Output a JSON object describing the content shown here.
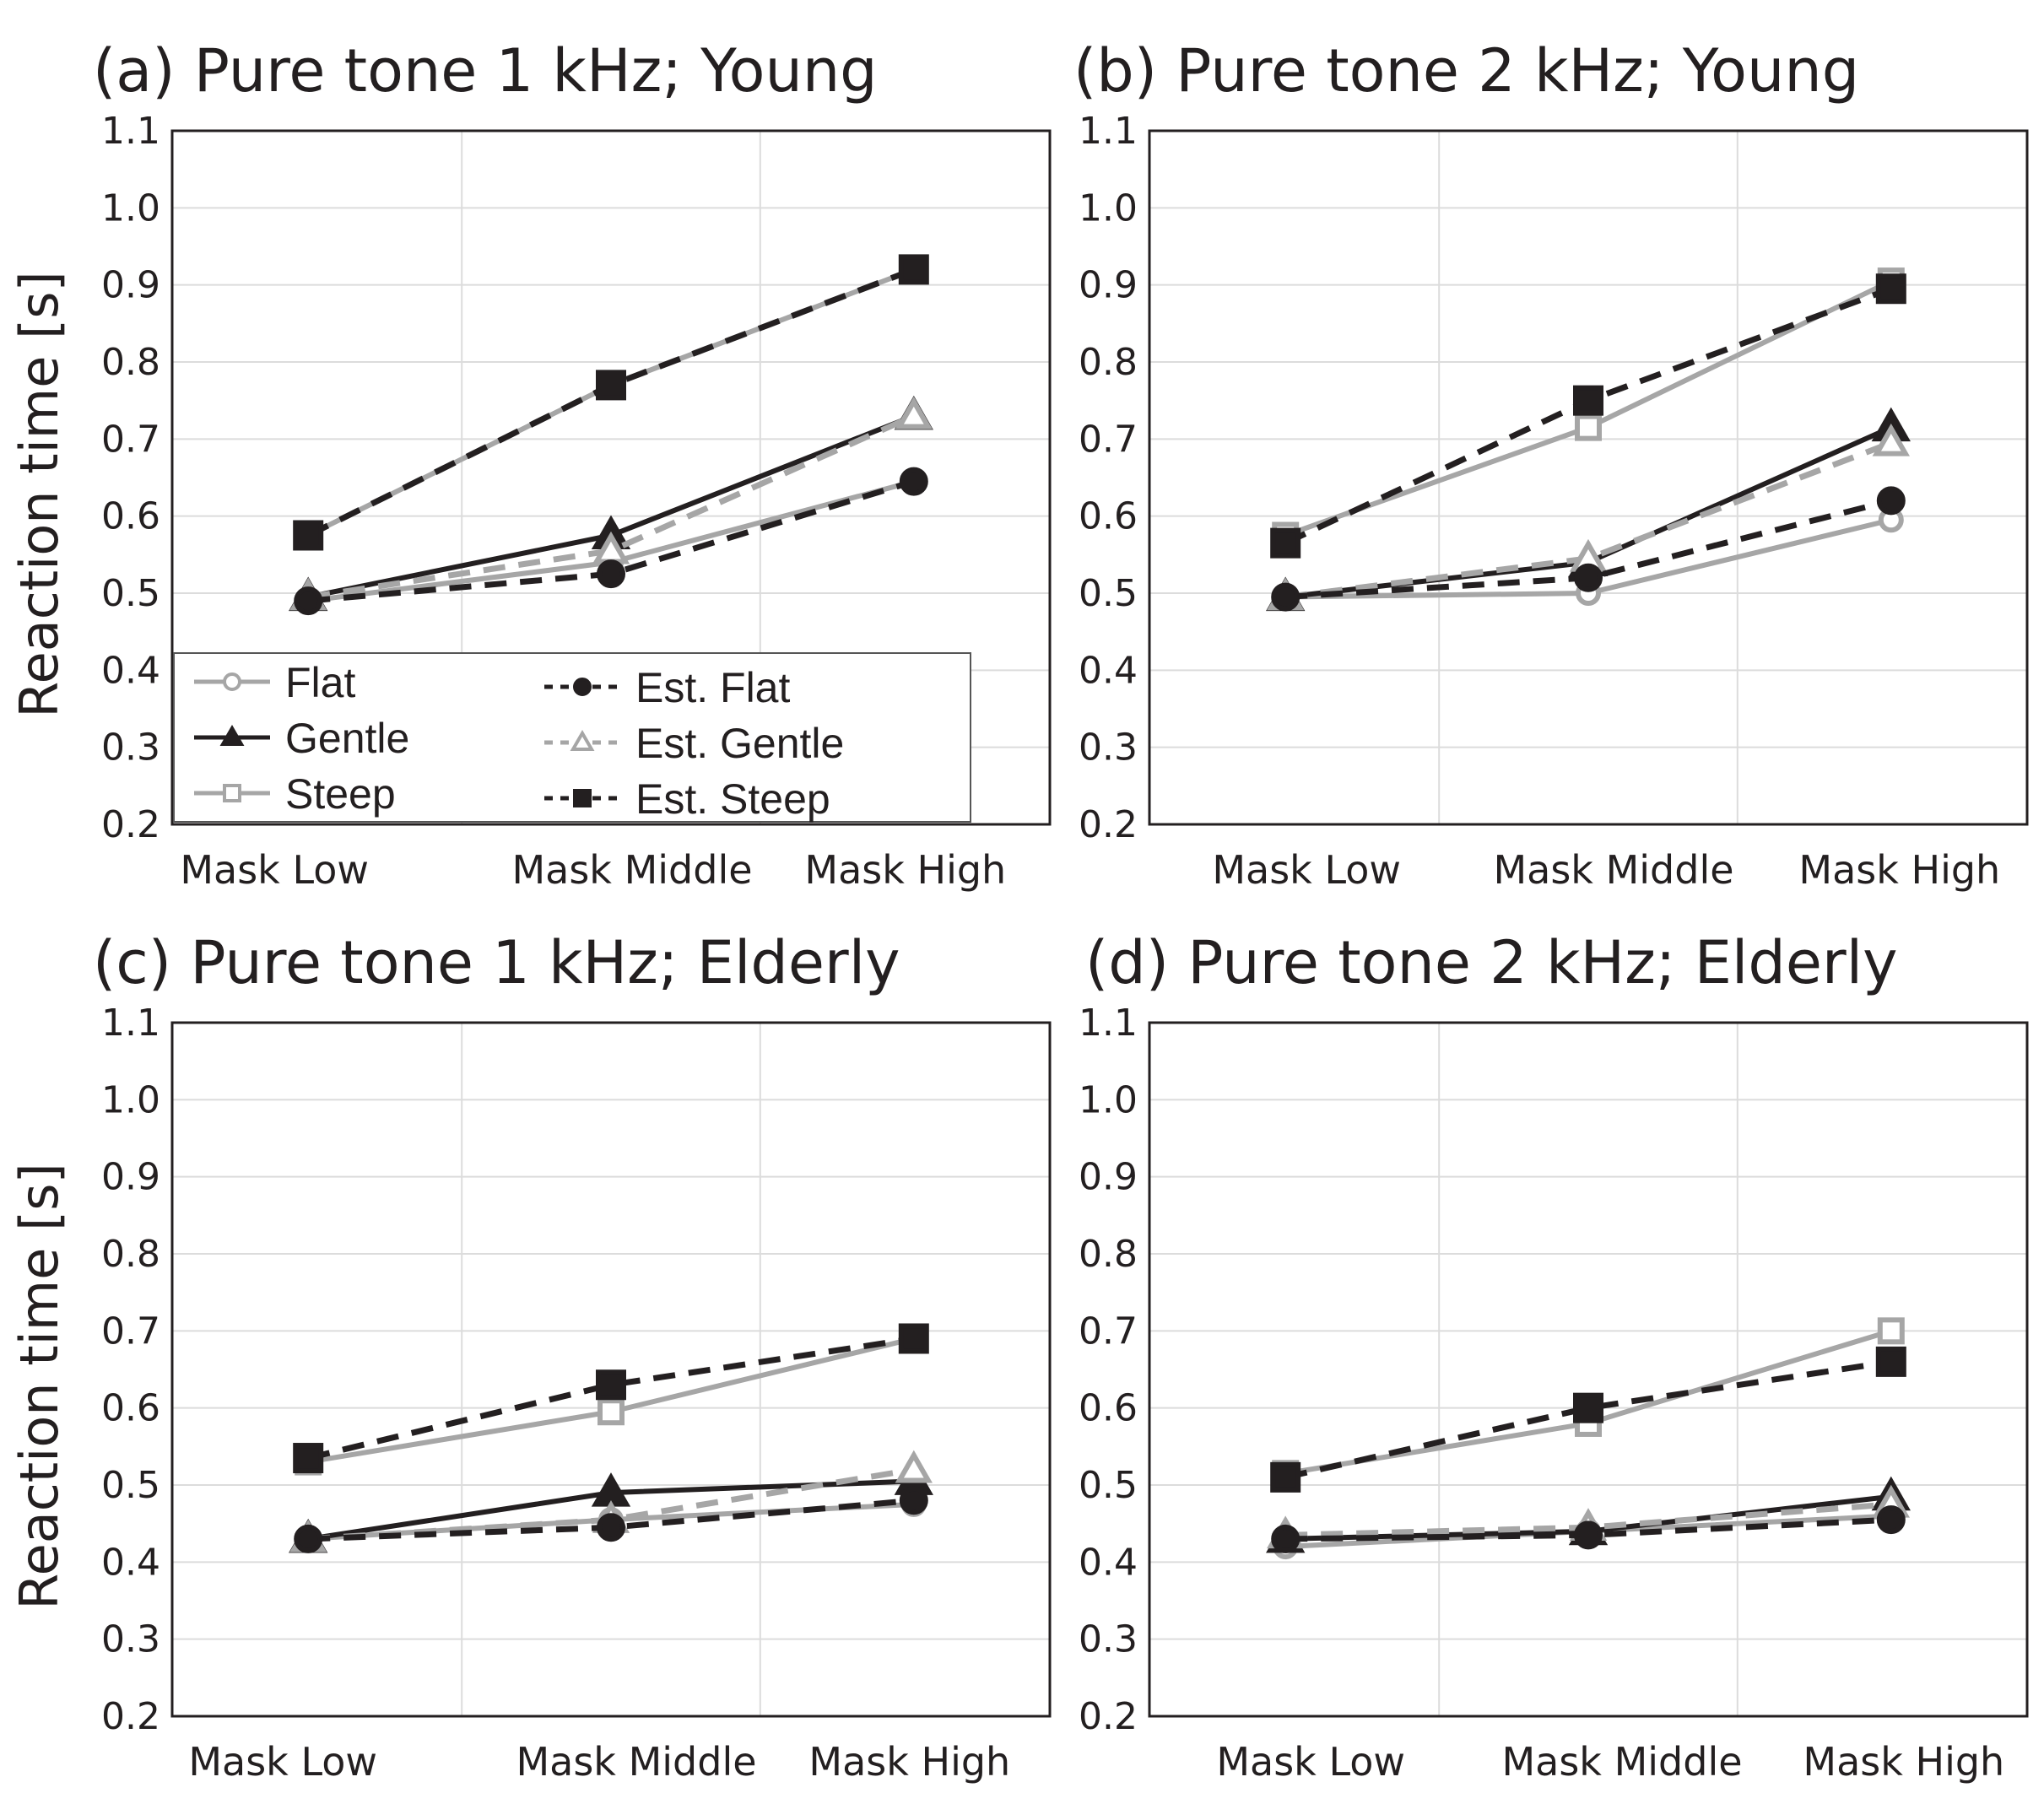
{
  "chart_data": [
    {
      "type": "line",
      "title": "(a) Pure tone 1 kHz; Young",
      "xlabel": "",
      "ylabel": "Reaction time [s]",
      "categories": [
        "Mask Low",
        "Mask Middle",
        "Mask High"
      ],
      "ylim": [
        0.2,
        1.1
      ],
      "yticks": [
        "0.2",
        "0.3",
        "0.4",
        "0.5",
        "0.6",
        "0.7",
        "0.8",
        "0.9",
        "1.0",
        "1.1"
      ],
      "grid": true,
      "legend": "lower-left",
      "series": [
        {
          "name": "Flat",
          "values": [
            0.49,
            0.54,
            0.645
          ]
        },
        {
          "name": "Gentle",
          "values": [
            0.495,
            0.575,
            0.73
          ]
        },
        {
          "name": "Steep",
          "values": [
            0.575,
            0.77,
            0.92
          ]
        },
        {
          "name": "Est. Flat",
          "values": [
            0.49,
            0.525,
            0.645
          ]
        },
        {
          "name": "Est. Gentle",
          "values": [
            0.495,
            0.555,
            0.73
          ]
        },
        {
          "name": "Est. Steep",
          "values": [
            0.575,
            0.77,
            0.92
          ]
        }
      ]
    },
    {
      "type": "line",
      "title": "(b) Pure tone 2 kHz; Young",
      "xlabel": "",
      "ylabel": "",
      "categories": [
        "Mask Low",
        "Mask Middle",
        "Mask High"
      ],
      "ylim": [
        0.2,
        1.1
      ],
      "yticks": [
        "0.2",
        "0.3",
        "0.4",
        "0.5",
        "0.6",
        "0.7",
        "0.8",
        "0.9",
        "1.0",
        "1.1"
      ],
      "grid": true,
      "series": [
        {
          "name": "Flat",
          "values": [
            0.495,
            0.5,
            0.595
          ]
        },
        {
          "name": "Gentle",
          "values": [
            0.495,
            0.54,
            0.715
          ]
        },
        {
          "name": "Steep",
          "values": [
            0.575,
            0.715,
            0.905
          ]
        },
        {
          "name": "Est. Flat",
          "values": [
            0.495,
            0.52,
            0.62
          ]
        },
        {
          "name": "Est. Gentle",
          "values": [
            0.495,
            0.545,
            0.695
          ]
        },
        {
          "name": "Est. Steep",
          "values": [
            0.565,
            0.75,
            0.895
          ]
        }
      ]
    },
    {
      "type": "line",
      "title": "(c) Pure tone 1 kHz; Elderly",
      "xlabel": "",
      "ylabel": "Reaction time [s]",
      "categories": [
        "Mask Low",
        "Mask Middle",
        "Mask High"
      ],
      "ylim": [
        0.2,
        1.1
      ],
      "yticks": [
        "0.2",
        "0.3",
        "0.4",
        "0.5",
        "0.6",
        "0.7",
        "0.8",
        "0.9",
        "1.0",
        "1.1"
      ],
      "grid": true,
      "series": [
        {
          "name": "Flat",
          "values": [
            0.43,
            0.455,
            0.475
          ]
        },
        {
          "name": "Gentle",
          "values": [
            0.43,
            0.49,
            0.505
          ]
        },
        {
          "name": "Steep",
          "values": [
            0.53,
            0.595,
            0.69
          ]
        },
        {
          "name": "Est. Flat",
          "values": [
            0.43,
            0.445,
            0.48
          ]
        },
        {
          "name": "Est. Gentle",
          "values": [
            0.43,
            0.455,
            0.52
          ]
        },
        {
          "name": "Est. Steep",
          "values": [
            0.535,
            0.63,
            0.69
          ]
        }
      ]
    },
    {
      "type": "line",
      "title": "(d) Pure tone 2 kHz; Elderly",
      "xlabel": "",
      "ylabel": "",
      "categories": [
        "Mask Low",
        "Mask Middle",
        "Mask High"
      ],
      "ylim": [
        0.2,
        1.1
      ],
      "yticks": [
        "0.2",
        "0.3",
        "0.4",
        "0.5",
        "0.6",
        "0.7",
        "0.8",
        "0.9",
        "1.0",
        "1.1"
      ],
      "grid": true,
      "series": [
        {
          "name": "Flat",
          "values": [
            0.42,
            0.44,
            0.46
          ]
        },
        {
          "name": "Gentle",
          "values": [
            0.43,
            0.44,
            0.485
          ]
        },
        {
          "name": "Steep",
          "values": [
            0.515,
            0.58,
            0.7
          ]
        },
        {
          "name": "Est. Flat",
          "values": [
            0.43,
            0.435,
            0.455
          ]
        },
        {
          "name": "Est. Gentle",
          "values": [
            0.435,
            0.445,
            0.475
          ]
        },
        {
          "name": "Est. Steep",
          "values": [
            0.51,
            0.6,
            0.66
          ]
        }
      ]
    }
  ],
  "legend_entries": [
    "Flat",
    "Gentle",
    "Steep",
    "Est. Flat",
    "Est. Gentle",
    "Est. Steep"
  ],
  "series_styles": [
    {
      "color": "#a6a6a6",
      "dash": "none",
      "marker": "circle",
      "filled": false
    },
    {
      "color": "#231f20",
      "dash": "none",
      "marker": "triangle",
      "filled": true
    },
    {
      "color": "#a6a6a6",
      "dash": "none",
      "marker": "square",
      "filled": false
    },
    {
      "color": "#231f20",
      "dash": "dashed",
      "marker": "circle",
      "filled": true
    },
    {
      "color": "#a6a6a6",
      "dash": "dashed",
      "marker": "triangle",
      "filled": false
    },
    {
      "color": "#231f20",
      "dash": "dashed",
      "marker": "square",
      "filled": true
    }
  ],
  "colors": {
    "grid": "#dcdcdc",
    "axis": "#231f20",
    "gray": "#a6a6a6",
    "black": "#231f20"
  }
}
